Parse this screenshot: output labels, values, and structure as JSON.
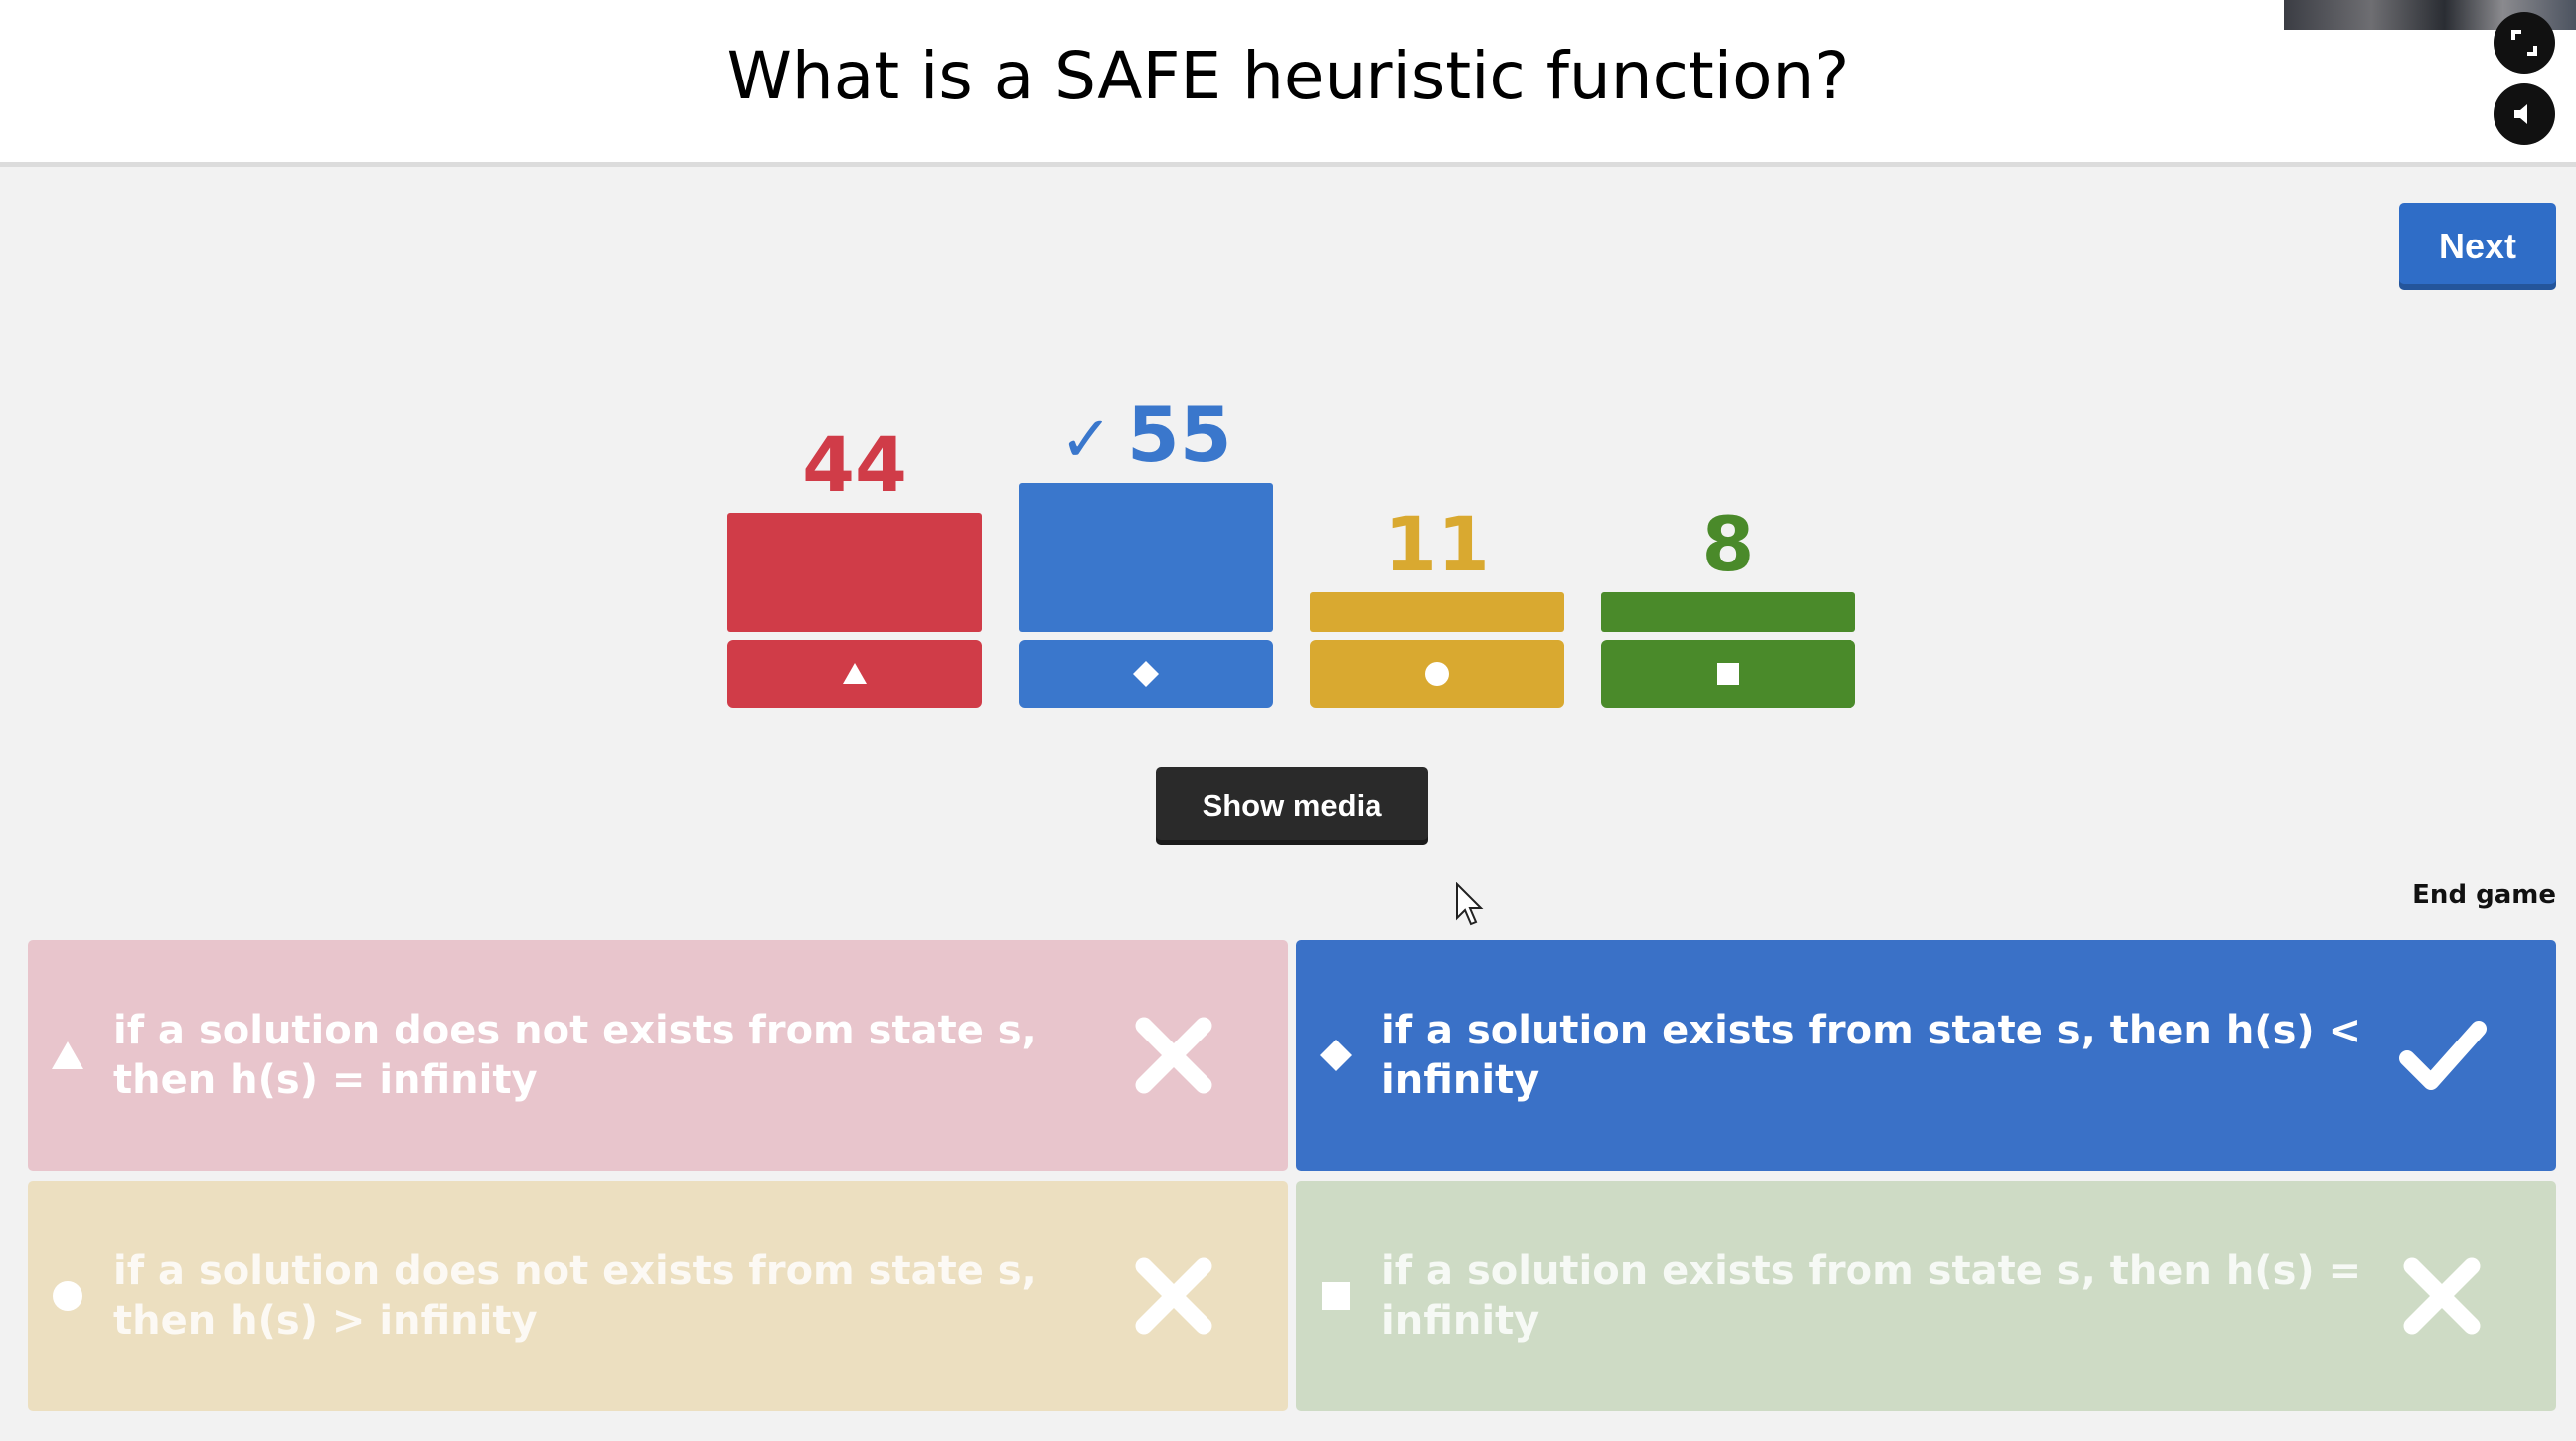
{
  "question": "What is a SAFE heuristic function?",
  "next_label": "Next",
  "show_media_label": "Show media",
  "end_game_label": "End game",
  "chart_data": {
    "type": "bar",
    "categories": [
      "triangle",
      "diamond",
      "circle",
      "square"
    ],
    "values": [
      44,
      55,
      11,
      8
    ],
    "correct_index": 1,
    "colors": [
      "#d03c48",
      "#3a77cc",
      "#d9a930",
      "#4a8a2a"
    ]
  },
  "counts": {
    "c0": "44",
    "c1": "55",
    "c2": "11",
    "c3": "8",
    "check": "✓"
  },
  "answers": [
    {
      "text": "if a solution does not exists from state s, then h(s) = infinity",
      "shape": "triangle-icon",
      "correct": false,
      "color": "#e8c5cc"
    },
    {
      "text": "if a solution exists from state s, then h(s) < infinity",
      "shape": "diamond-icon",
      "correct": true,
      "color": "#3a71c7"
    },
    {
      "text": "if a solution does not exists from state s, then h(s) > infinity",
      "shape": "circle-icon",
      "correct": false,
      "color": "#ecdfc0"
    },
    {
      "text": "if a solution exists from state s, then h(s) = infinity",
      "shape": "square-icon",
      "correct": false,
      "color": "#cedbc5"
    }
  ]
}
